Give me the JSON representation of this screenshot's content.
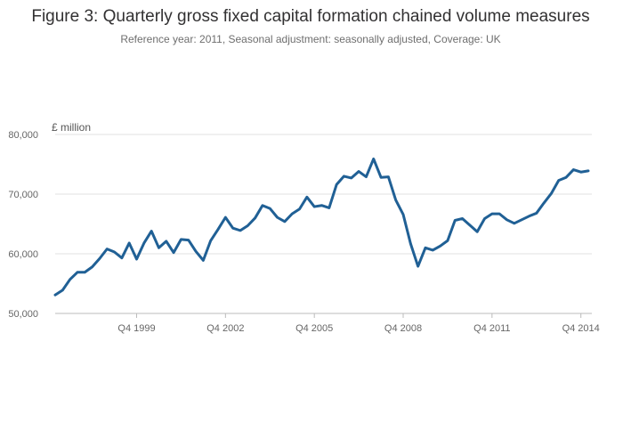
{
  "chart_data": {
    "type": "line",
    "title": "Figure 3: Quarterly gross fixed capital formation chained volume measures",
    "subtitle": "Reference year: 2011, Seasonal adjustment: seasonally adjusted, Coverage: UK",
    "ylabel": "£ million",
    "xlabel": "",
    "ylim": [
      50000,
      80000
    ],
    "yticks": [
      50000,
      60000,
      70000,
      80000
    ],
    "ytick_labels": [
      "50,000",
      "60,000",
      "70,000",
      "80,000"
    ],
    "xticks": [
      {
        "index": 11,
        "label": "Q4 1999"
      },
      {
        "index": 23,
        "label": "Q4 2002"
      },
      {
        "index": 35,
        "label": "Q4 2005"
      },
      {
        "index": 47,
        "label": "Q4 2008"
      },
      {
        "index": 59,
        "label": "Q4 2011"
      },
      {
        "index": 71,
        "label": "Q4 2014"
      }
    ],
    "grid": true,
    "color": "#206095",
    "series": [
      {
        "name": "Gross fixed capital formation",
        "x": [
          "Q1 1997",
          "Q2 1997",
          "Q3 1997",
          "Q4 1997",
          "Q1 1998",
          "Q2 1998",
          "Q3 1998",
          "Q4 1998",
          "Q1 1999",
          "Q2 1999",
          "Q3 1999",
          "Q4 1999",
          "Q1 2000",
          "Q2 2000",
          "Q3 2000",
          "Q4 2000",
          "Q1 2001",
          "Q2 2001",
          "Q3 2001",
          "Q4 2001",
          "Q1 2002",
          "Q2 2002",
          "Q3 2002",
          "Q4 2002",
          "Q1 2003",
          "Q2 2003",
          "Q3 2003",
          "Q4 2003",
          "Q1 2004",
          "Q2 2004",
          "Q3 2004",
          "Q4 2004",
          "Q1 2005",
          "Q2 2005",
          "Q3 2005",
          "Q4 2005",
          "Q1 2006",
          "Q2 2006",
          "Q3 2006",
          "Q4 2006",
          "Q1 2007",
          "Q2 2007",
          "Q3 2007",
          "Q4 2007",
          "Q1 2008",
          "Q2 2008",
          "Q3 2008",
          "Q4 2008",
          "Q1 2009",
          "Q2 2009",
          "Q3 2009",
          "Q4 2009",
          "Q1 2010",
          "Q2 2010",
          "Q3 2010",
          "Q4 2010",
          "Q1 2011",
          "Q2 2011",
          "Q3 2011",
          "Q4 2011",
          "Q1 2012",
          "Q2 2012",
          "Q3 2012",
          "Q4 2012",
          "Q1 2013",
          "Q2 2013",
          "Q3 2013",
          "Q4 2013",
          "Q1 2014",
          "Q2 2014",
          "Q3 2014",
          "Q4 2014",
          "Q1 2015"
        ],
        "values": [
          53100,
          53900,
          55700,
          56900,
          56900,
          57800,
          59200,
          60800,
          60300,
          59300,
          61800,
          59100,
          61800,
          63800,
          61000,
          62100,
          60200,
          62400,
          62300,
          60400,
          58900,
          62200,
          64100,
          66100,
          64300,
          63900,
          64700,
          66000,
          68100,
          67600,
          66100,
          65400,
          66700,
          67500,
          69500,
          67900,
          68100,
          67700,
          71600,
          73000,
          72700,
          73800,
          72900,
          75900,
          72800,
          72900,
          69000,
          66600,
          61700,
          57900,
          61000,
          60600,
          61300,
          62200,
          65600,
          65900,
          64800,
          63700,
          65900,
          66700,
          66700,
          65700,
          65100,
          65700,
          66300,
          66800,
          68500,
          70100,
          72300,
          72800,
          74100,
          73700,
          73900
        ]
      }
    ]
  }
}
